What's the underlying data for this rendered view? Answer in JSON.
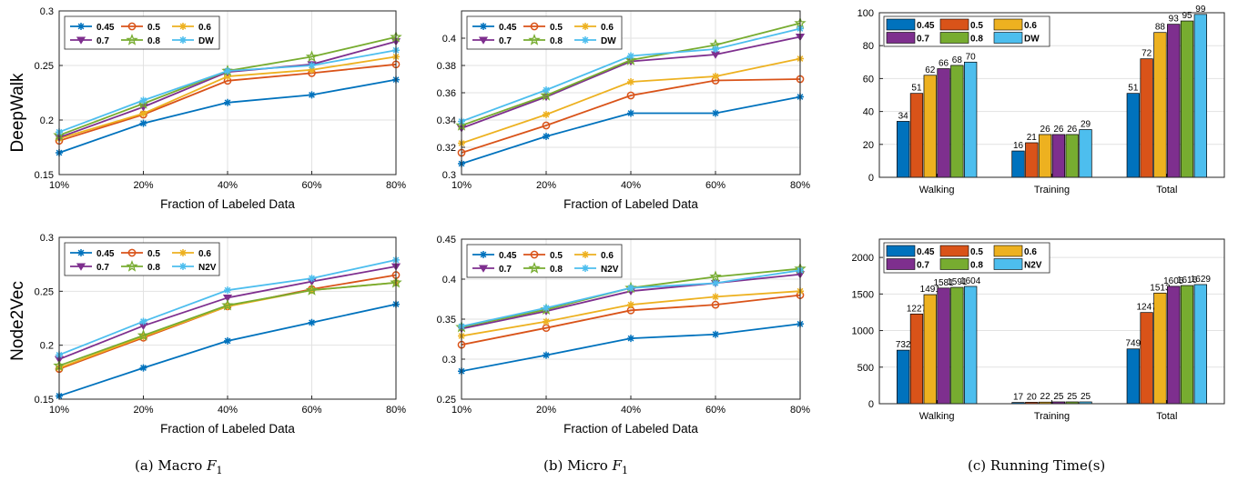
{
  "row_labels": [
    "DeepWalk",
    "Node2Vec"
  ],
  "captions": {
    "a": {
      "prefix": "(a) Macro ",
      "var": "F",
      "sub": "1"
    },
    "b": {
      "prefix": "(b) Micro ",
      "var": "F",
      "sub": "1"
    },
    "c": {
      "text": "(c) Running Time(s)"
    }
  },
  "colors": {
    "0.45": "#0072BD",
    "0.5": "#D95319",
    "0.6": "#EDB120",
    "0.7": "#7E2F8E",
    "0.8": "#77AC30",
    "base": "#4DBEEE"
  },
  "chart_data": [
    {
      "id": "dw_macro",
      "type": "line",
      "x": [
        "10%",
        "20%",
        "40%",
        "60%",
        "80%"
      ],
      "xlabel": "Fraction of Labeled Data",
      "ylim": [
        0.15,
        0.3
      ],
      "yticks": [
        "0.15",
        "0.2",
        "0.25",
        "0.3"
      ],
      "grid": true,
      "legend_placement": "top-left",
      "series": [
        {
          "name": "0.45",
          "values": [
            0.17,
            0.197,
            0.216,
            0.223,
            0.237
          ]
        },
        {
          "name": "0.5",
          "values": [
            0.181,
            0.205,
            0.236,
            0.243,
            0.251
          ]
        },
        {
          "name": "0.6",
          "values": [
            0.183,
            0.206,
            0.24,
            0.246,
            0.258
          ]
        },
        {
          "name": "0.7",
          "values": [
            0.184,
            0.212,
            0.244,
            0.251,
            0.272
          ]
        },
        {
          "name": "0.8",
          "values": [
            0.186,
            0.215,
            0.245,
            0.258,
            0.276
          ]
        },
        {
          "name": "DW",
          "values": [
            0.189,
            0.218,
            0.245,
            0.25,
            0.264
          ]
        }
      ]
    },
    {
      "id": "dw_micro",
      "type": "line",
      "x": [
        "10%",
        "20%",
        "40%",
        "60%",
        "80%"
      ],
      "xlabel": "Fraction of Labeled Data",
      "ylim": [
        0.3,
        0.42
      ],
      "yticks": [
        "0.3",
        "0.32",
        "0.34",
        "0.36",
        "0.38",
        "0.4"
      ],
      "grid": true,
      "legend_placement": "top-left",
      "series": [
        {
          "name": "0.45",
          "values": [
            0.308,
            0.328,
            0.345,
            0.345,
            0.357
          ]
        },
        {
          "name": "0.5",
          "values": [
            0.316,
            0.336,
            0.358,
            0.369,
            0.37
          ]
        },
        {
          "name": "0.6",
          "values": [
            0.323,
            0.344,
            0.368,
            0.372,
            0.385
          ]
        },
        {
          "name": "0.7",
          "values": [
            0.334,
            0.357,
            0.383,
            0.388,
            0.401
          ]
        },
        {
          "name": "0.8",
          "values": [
            0.336,
            0.358,
            0.384,
            0.395,
            0.411
          ]
        },
        {
          "name": "DW",
          "values": [
            0.339,
            0.362,
            0.387,
            0.392,
            0.407
          ]
        }
      ]
    },
    {
      "id": "dw_time",
      "type": "bar",
      "categories": [
        "Walking",
        "Training",
        "Total"
      ],
      "ylim": [
        0,
        100
      ],
      "yticks": [
        "0",
        "20",
        "40",
        "60",
        "80",
        "100"
      ],
      "grid": true,
      "legend_placement": "top-left",
      "series": [
        {
          "name": "0.45",
          "values": [
            34,
            16,
            51
          ]
        },
        {
          "name": "0.5",
          "values": [
            51,
            21,
            72
          ]
        },
        {
          "name": "0.6",
          "values": [
            62,
            26,
            88
          ]
        },
        {
          "name": "0.7",
          "values": [
            66,
            26,
            93
          ]
        },
        {
          "name": "0.8",
          "values": [
            68,
            26,
            95
          ]
        },
        {
          "name": "DW",
          "values": [
            70,
            29,
            99
          ]
        }
      ]
    },
    {
      "id": "n2v_macro",
      "type": "line",
      "x": [
        "10%",
        "20%",
        "40%",
        "60%",
        "80%"
      ],
      "xlabel": "Fraction of Labeled Data",
      "ylim": [
        0.15,
        0.3
      ],
      "yticks": [
        "0.15",
        "0.2",
        "0.25",
        "0.3"
      ],
      "grid": true,
      "legend_placement": "top-left",
      "series": [
        {
          "name": "0.45",
          "values": [
            0.153,
            0.179,
            0.204,
            0.221,
            0.238
          ]
        },
        {
          "name": "0.5",
          "values": [
            0.178,
            0.207,
            0.236,
            0.252,
            0.265
          ]
        },
        {
          "name": "0.6",
          "values": [
            0.179,
            0.208,
            0.236,
            0.251,
            0.258
          ]
        },
        {
          "name": "0.7",
          "values": [
            0.187,
            0.218,
            0.244,
            0.259,
            0.273
          ]
        },
        {
          "name": "0.8",
          "values": [
            0.181,
            0.209,
            0.237,
            0.251,
            0.258
          ]
        },
        {
          "name": "N2V",
          "values": [
            0.191,
            0.222,
            0.251,
            0.262,
            0.279
          ]
        }
      ]
    },
    {
      "id": "n2v_micro",
      "type": "line",
      "x": [
        "10%",
        "20%",
        "40%",
        "60%",
        "80%"
      ],
      "xlabel": "Fraction of Labeled Data",
      "ylim": [
        0.25,
        0.45
      ],
      "yticks": [
        "0.25",
        "0.3",
        "0.35",
        "0.4",
        "0.45"
      ],
      "grid": true,
      "legend_placement": "top-left",
      "series": [
        {
          "name": "0.45",
          "values": [
            0.285,
            0.305,
            0.326,
            0.331,
            0.344
          ]
        },
        {
          "name": "0.5",
          "values": [
            0.318,
            0.339,
            0.361,
            0.368,
            0.38
          ]
        },
        {
          "name": "0.6",
          "values": [
            0.329,
            0.347,
            0.368,
            0.378,
            0.385
          ]
        },
        {
          "name": "0.7",
          "values": [
            0.338,
            0.36,
            0.385,
            0.395,
            0.406
          ]
        },
        {
          "name": "0.8",
          "values": [
            0.34,
            0.362,
            0.389,
            0.403,
            0.413
          ]
        },
        {
          "name": "N2V",
          "values": [
            0.341,
            0.364,
            0.389,
            0.395,
            0.411
          ]
        }
      ]
    },
    {
      "id": "n2v_time",
      "type": "bar",
      "categories": [
        "Walking",
        "Training",
        "Total"
      ],
      "ylim": [
        0,
        2250
      ],
      "yticks": [
        "0",
        "500",
        "1000",
        "1500",
        "2000"
      ],
      "grid": true,
      "legend_placement": "top-left",
      "series": [
        {
          "name": "0.45",
          "values": [
            732,
            17,
            749
          ]
        },
        {
          "name": "0.5",
          "values": [
            1227,
            20,
            1247
          ]
        },
        {
          "name": "0.6",
          "values": [
            1491,
            22,
            1513
          ]
        },
        {
          "name": "0.7",
          "values": [
            1581,
            25,
            1605
          ]
        },
        {
          "name": "0.8",
          "values": [
            1591,
            25,
            1616
          ]
        },
        {
          "name": "N2V",
          "values": [
            1604,
            25,
            1629
          ]
        }
      ]
    }
  ]
}
